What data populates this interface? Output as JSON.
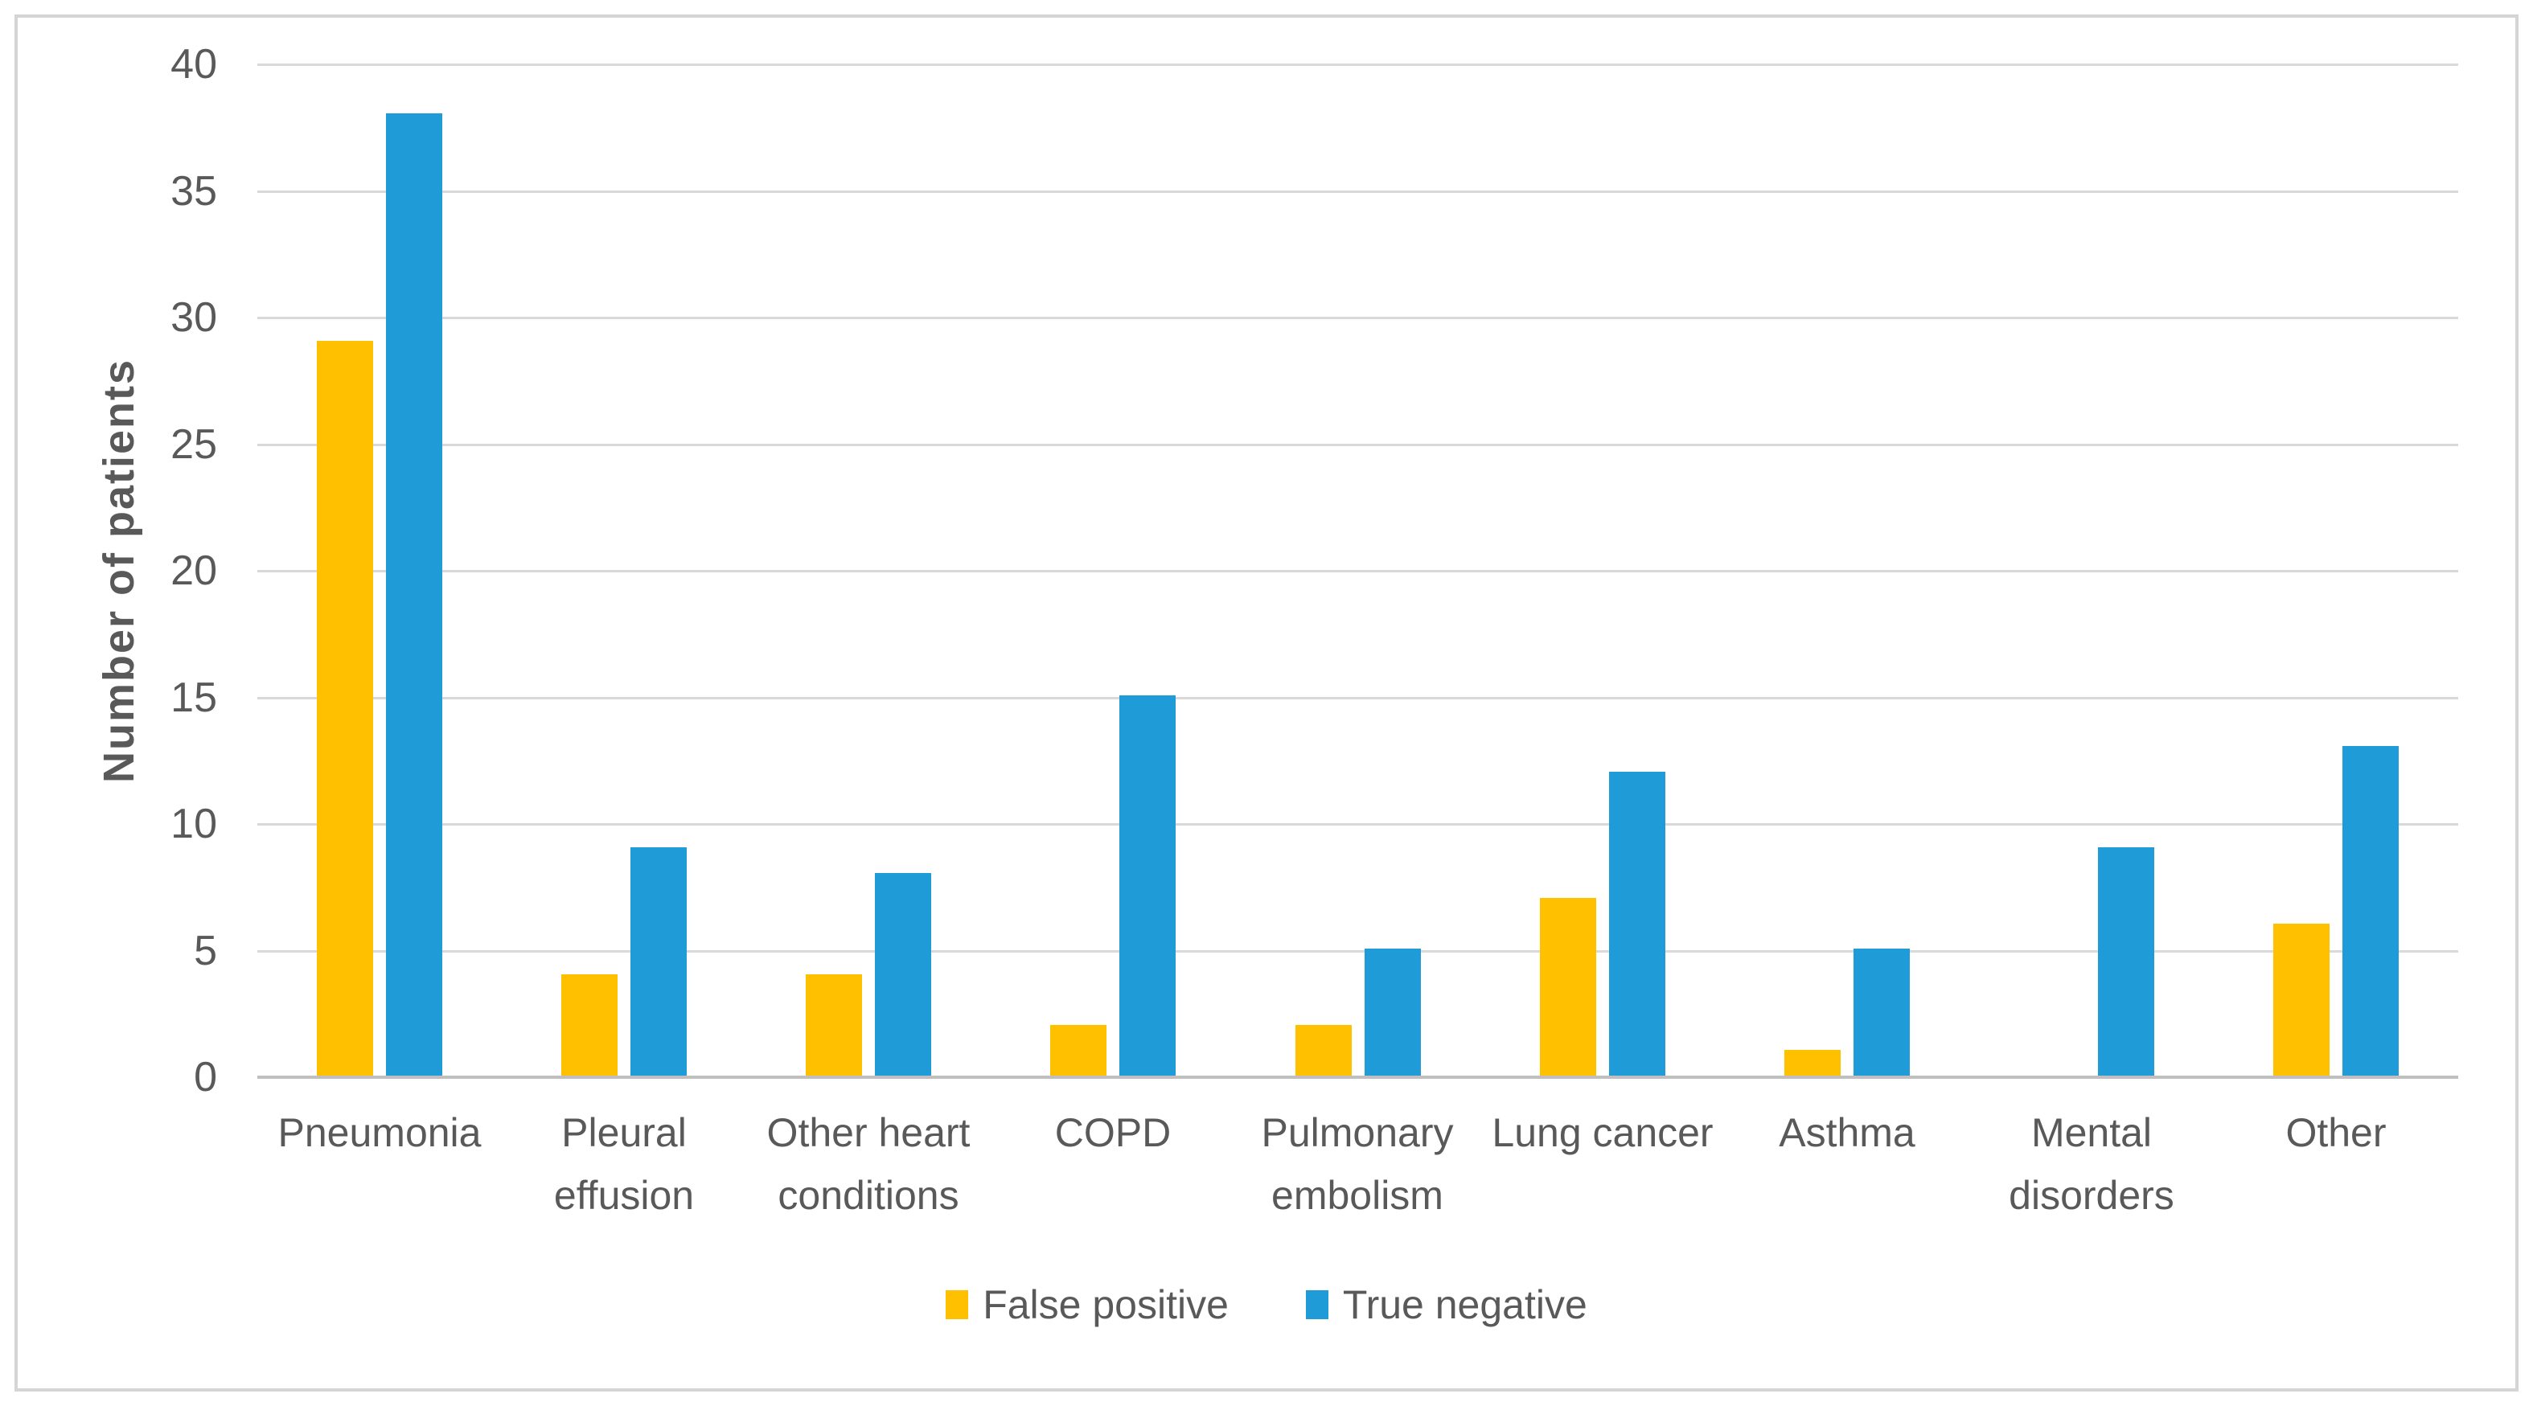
{
  "chart_data": {
    "type": "bar",
    "title": "",
    "ylabel": "Number of patients",
    "xlabel": "",
    "categories": [
      "Pneumonia",
      "Pleural effusion",
      "Other heart conditions",
      "COPD",
      "Pulmonary embolism",
      "Lung cancer",
      "Asthma",
      "Mental disorders",
      "Other"
    ],
    "series": [
      {
        "name": "False positive",
        "color": "#FFC000",
        "values": [
          29,
          4,
          4,
          2,
          2,
          7,
          1,
          0,
          6
        ]
      },
      {
        "name": "True negative",
        "color": "#1F9BD7",
        "values": [
          38,
          9,
          8,
          15,
          5,
          12,
          5,
          9,
          13
        ]
      }
    ],
    "ylim": [
      0,
      40
    ],
    "yticks": [
      0,
      5,
      10,
      15,
      20,
      25,
      30,
      35,
      40
    ],
    "grid": "horizontal",
    "legend_position": "bottom"
  },
  "style_colors": {
    "series_yellow": "#FFC000",
    "series_blue": "#1F9BD7",
    "text_gray": "#595959",
    "gridline_gray": "#D9D9D9",
    "axis_line_gray": "#BFBFBF",
    "frame_border_gray": "#D5D5D5"
  }
}
